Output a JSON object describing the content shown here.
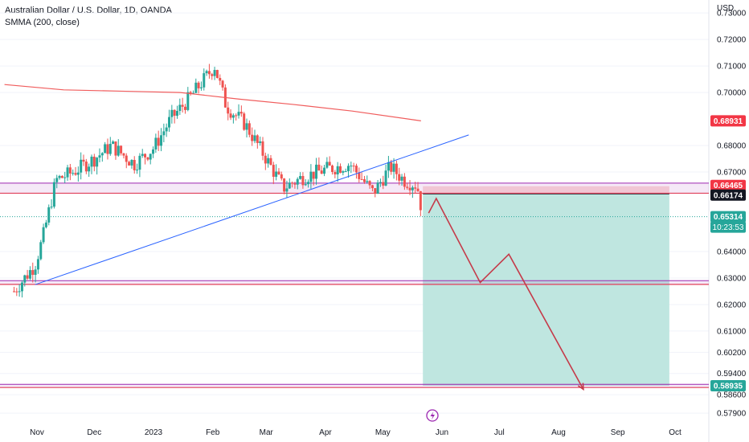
{
  "header": {
    "title": "Australian Dollar / U.S. Dollar, 1D, OANDA",
    "indicator": "SMMA (200, close)",
    "currency": "USD"
  },
  "colors": {
    "bull": "#26a69a",
    "bear": "#ef5350",
    "smma": "#f05c5c",
    "trendline": "#2962ff",
    "level_line": "#e0405a",
    "level_band": "#9c27b0",
    "path": "#c53a49",
    "target_zone": "#bfe6e0",
    "stop_zone": "#fbd8d8",
    "badge_red": "#f23645",
    "badge_teal": "#26a69a",
    "badge_black": "#131722"
  },
  "axis": {
    "y_ticks": [
      "0.73000",
      "0.72000",
      "0.71000",
      "0.70000",
      "0.68000",
      "0.67000",
      "0.64000",
      "0.63000",
      "0.62000",
      "0.61000",
      "0.60200",
      "0.59400",
      "0.58600",
      "0.57900"
    ],
    "x_ticks": [
      "Nov",
      "Dec",
      "2023",
      "Feb",
      "Mar",
      "Apr",
      "May",
      "Jun",
      "Jul",
      "Aug",
      "Sep",
      "Oct"
    ]
  },
  "price_badges": [
    {
      "value": "0.68931",
      "style": "red"
    },
    {
      "value": "0.66465",
      "style": "red"
    },
    {
      "value": "0.66174",
      "style": "black"
    },
    {
      "value": "0.65314",
      "style": "teal"
    },
    {
      "value": "10:23:53",
      "style": "teal"
    },
    {
      "value": "0.58935",
      "style": "teal"
    }
  ],
  "chart_data": {
    "type": "candlestick",
    "title": "Australian Dollar / U.S. Dollar, 1D, OANDA",
    "symbol": "AUDUSD",
    "interval": "1D",
    "indicator": {
      "name": "SMMA (200, close)",
      "points": [
        {
          "date": "2022-10-15",
          "value": 0.703
        },
        {
          "date": "2022-11-15",
          "value": 0.701
        },
        {
          "date": "2022-12-15",
          "value": 0.7005
        },
        {
          "date": "2023-01-15",
          "value": 0.7
        },
        {
          "date": "2023-02-15",
          "value": 0.6975
        },
        {
          "date": "2023-03-15",
          "value": 0.6955
        },
        {
          "date": "2023-04-15",
          "value": 0.693
        },
        {
          "date": "2023-05-21",
          "value": 0.6893
        }
      ]
    },
    "series": [
      {
        "date": "2022-10-20",
        "price": 0.625
      },
      {
        "date": "2022-10-31",
        "price": 0.635
      },
      {
        "date": "2022-11-04",
        "price": 0.645
      },
      {
        "date": "2022-11-11",
        "price": 0.667
      },
      {
        "date": "2022-11-20",
        "price": 0.67
      },
      {
        "date": "2022-12-01",
        "price": 0.675
      },
      {
        "date": "2022-12-10",
        "price": 0.68
      },
      {
        "date": "2022-12-22",
        "price": 0.673
      },
      {
        "date": "2023-01-01",
        "price": 0.679
      },
      {
        "date": "2023-01-10",
        "price": 0.69
      },
      {
        "date": "2023-01-20",
        "price": 0.698
      },
      {
        "date": "2023-02-02",
        "price": 0.71
      },
      {
        "date": "2023-02-08",
        "price": 0.695
      },
      {
        "date": "2023-02-18",
        "price": 0.688
      },
      {
        "date": "2023-03-01",
        "price": 0.675
      },
      {
        "date": "2023-03-10",
        "price": 0.664
      },
      {
        "date": "2023-03-20",
        "price": 0.668
      },
      {
        "date": "2023-04-01",
        "price": 0.671
      },
      {
        "date": "2023-04-14",
        "price": 0.673
      },
      {
        "date": "2023-04-26",
        "price": 0.662
      },
      {
        "date": "2023-05-05",
        "price": 0.672
      },
      {
        "date": "2023-05-12",
        "price": 0.667
      },
      {
        "date": "2023-05-19",
        "price": 0.665
      },
      {
        "date": "2023-05-22",
        "price": 0.653
      }
    ],
    "horizontal_levels": [
      0.665,
      0.662,
      0.6283,
      0.5893
    ],
    "trendline": {
      "from": {
        "date": "2022-10-31",
        "price": 0.6275
      },
      "to": {
        "date": "2023-06-15",
        "price": 0.684
      }
    },
    "position": {
      "type": "short",
      "entry": 0.66174,
      "stop": 0.66465,
      "target": 0.58935,
      "start": "2023-05-22",
      "end": "2023-09-28"
    },
    "projection_path": [
      {
        "date": "2023-05-25",
        "price": 0.6545
      },
      {
        "date": "2023-05-29",
        "price": 0.66
      },
      {
        "date": "2023-06-21",
        "price": 0.6283
      },
      {
        "date": "2023-07-06",
        "price": 0.639
      },
      {
        "date": "2023-08-14",
        "price": 0.588
      }
    ],
    "y_range": [
      0.575,
      0.735
    ],
    "x_range": [
      "2022-10-15",
      "2023-10-06"
    ]
  }
}
